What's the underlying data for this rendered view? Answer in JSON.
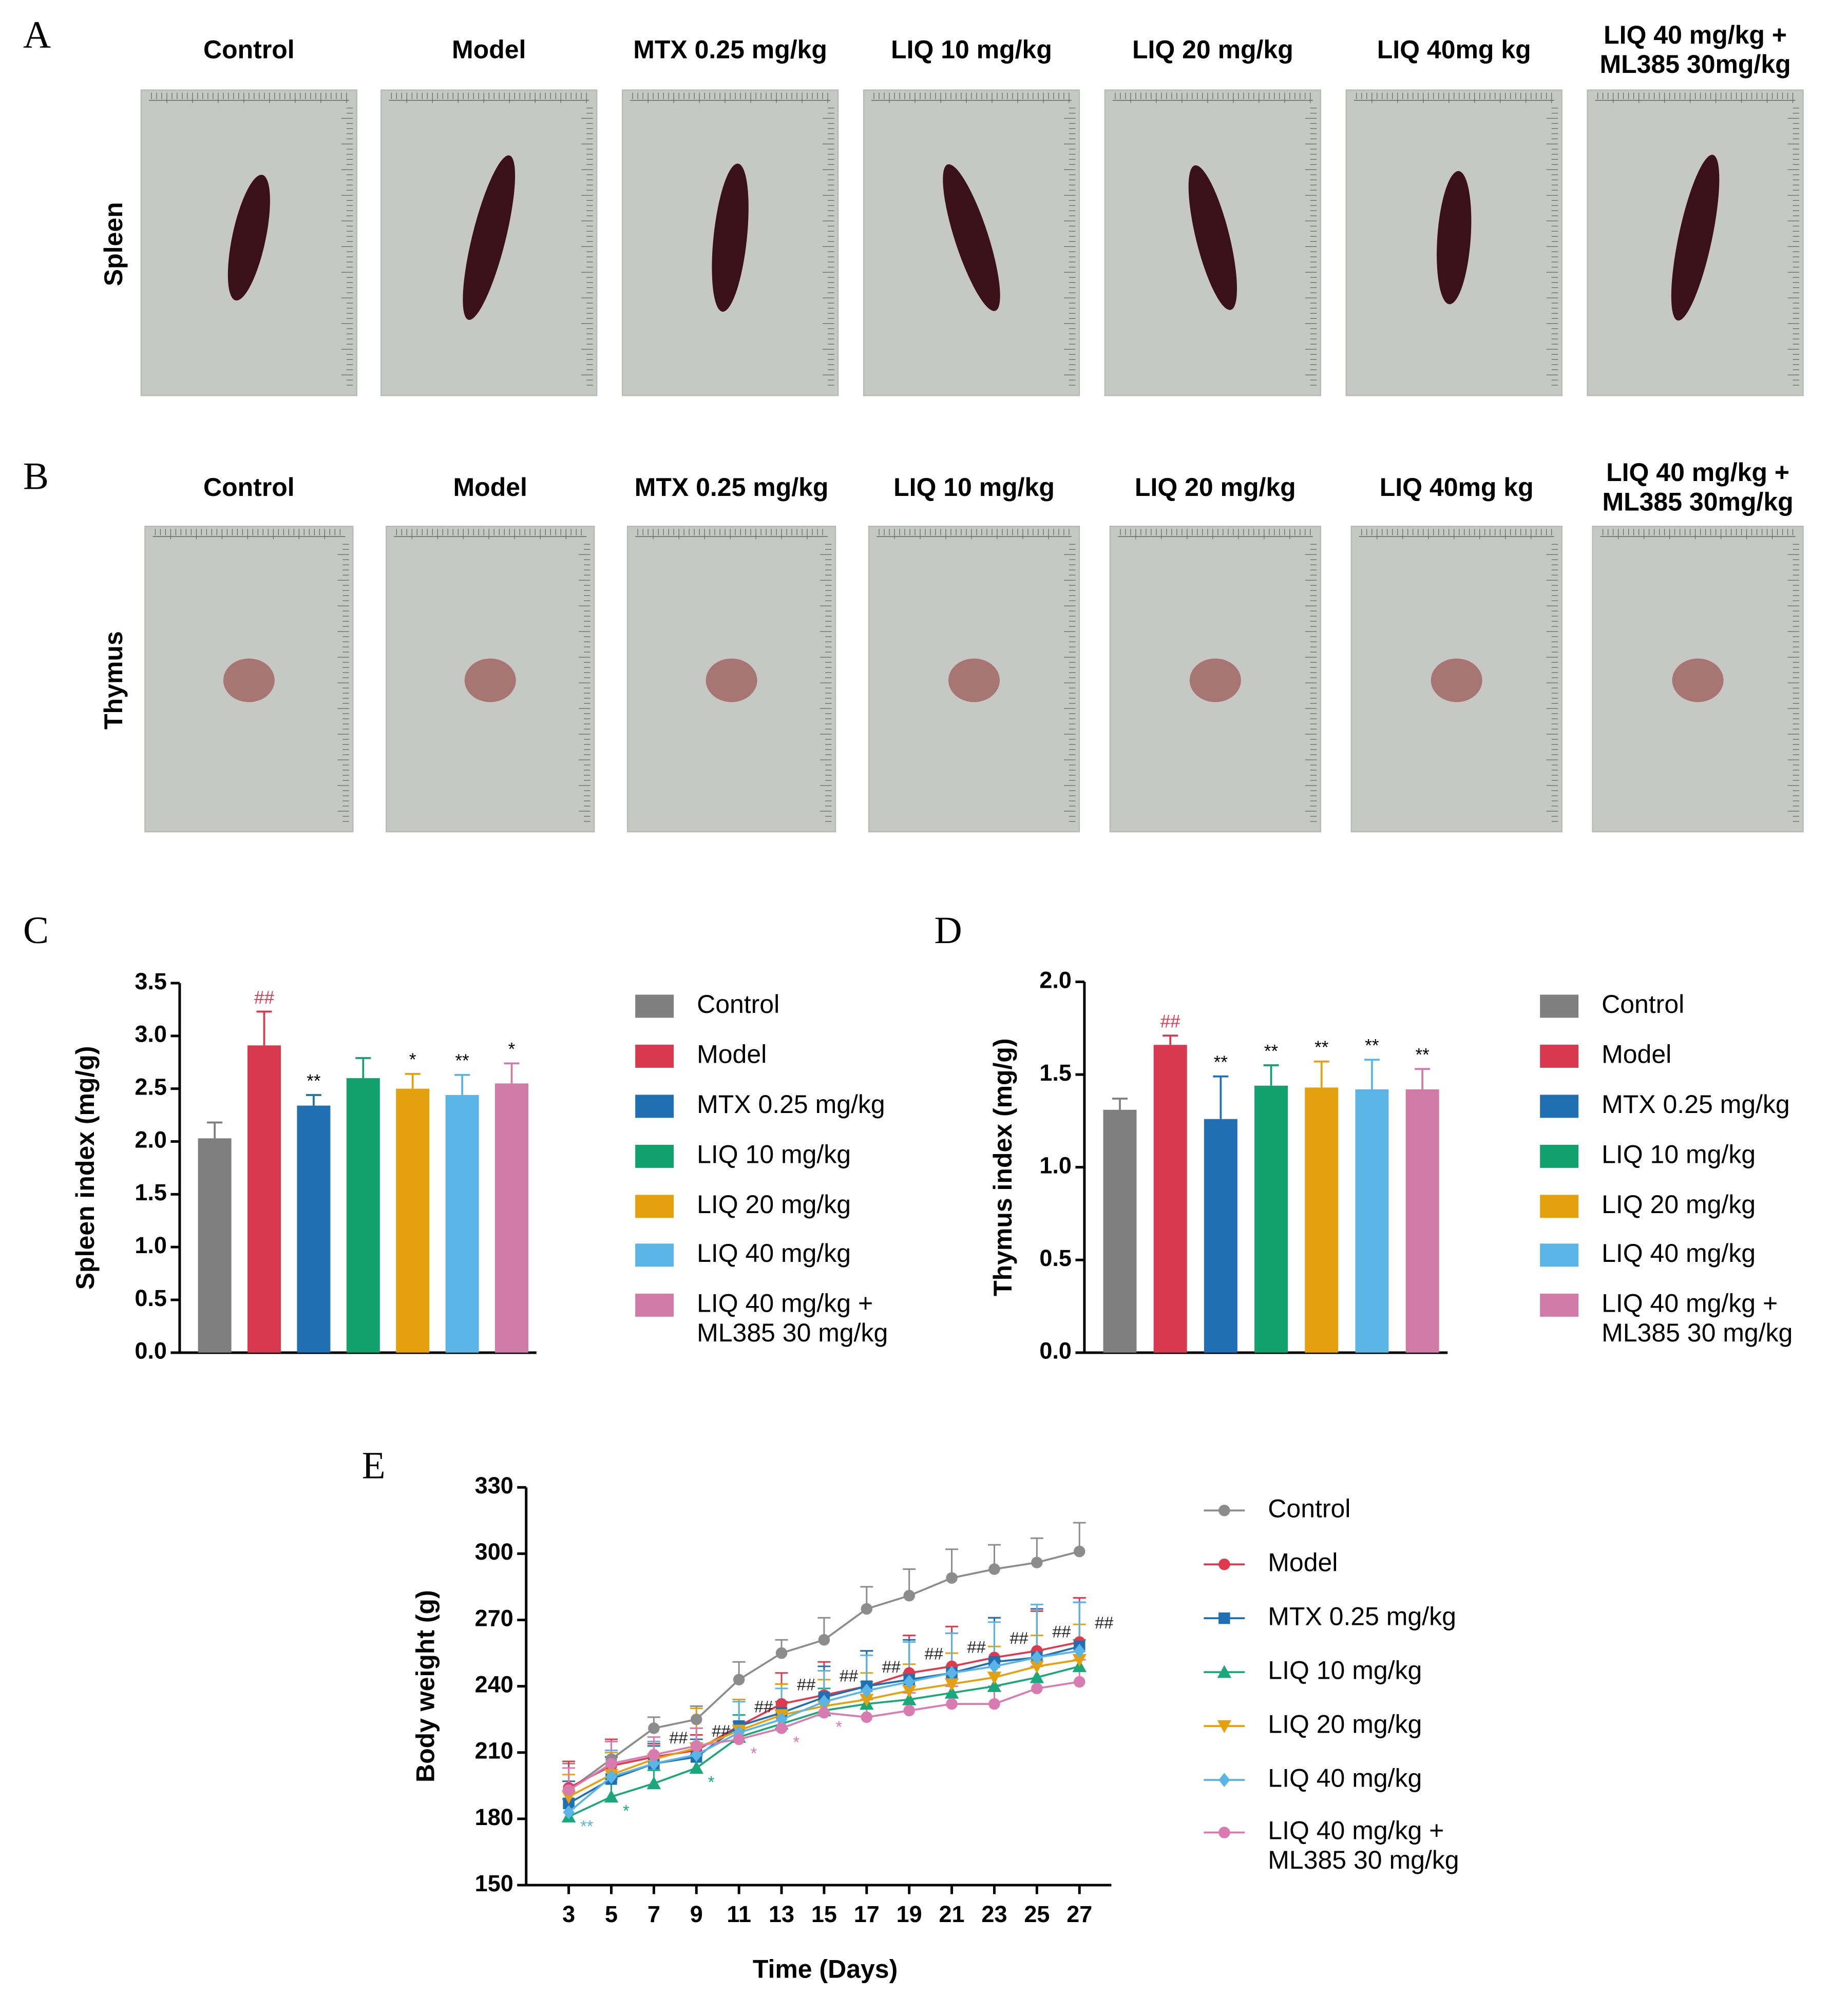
{
  "photo_panels": [
    {
      "label": "A",
      "organ": "Spleen",
      "groups": [
        "Control",
        "Model",
        "MTX 0.25 mg/kg",
        "LIQ 10 mg/kg",
        "LIQ 20 mg/kg",
        "LIQ 40mg kg",
        "LIQ 40 mg/kg +\nML385 30mg/kg"
      ]
    },
    {
      "label": "B",
      "organ": "Thymus",
      "groups": [
        "Control",
        "Model",
        "MTX 0.25 mg/kg",
        "LIQ 10 mg/kg",
        "LIQ 20 mg/kg",
        "LIQ 40mg kg",
        "LIQ 40 mg/kg +\nML385 30mg/kg"
      ]
    }
  ],
  "chart_data": [
    {
      "type": "bar",
      "panel_label": "C",
      "y_label": "Spleen index (mg/g)",
      "categories": [
        "Control",
        "Model",
        "MTX 0.25 mg/kg",
        "LIQ 10 mg/kg",
        "LIQ 20 mg/kg",
        "LIQ 40 mg/kg",
        "LIQ 40 mg/kg +\nML385 30 mg/kg"
      ],
      "values": [
        2.03,
        2.91,
        2.34,
        2.6,
        2.5,
        2.44,
        2.55
      ],
      "errors": [
        0.15,
        0.32,
        0.1,
        0.19,
        0.14,
        0.19,
        0.19
      ],
      "annotations": [
        null,
        "##",
        "**",
        null,
        "*",
        "**",
        "*"
      ],
      "colors": [
        "#7f7f7f",
        "#d9394e",
        "#1f6fb2",
        "#12a06e",
        "#e5a00d",
        "#5ab4e5",
        "#d07aa8"
      ],
      "ylim": [
        0,
        3.5
      ],
      "yticks": [
        {
          "value": 0,
          "label": "0.0"
        },
        0.5,
        {
          "value": 1,
          "label": "1.0"
        },
        1.5,
        {
          "value": 2,
          "label": "2.0"
        },
        2.5,
        {
          "value": 3,
          "label": "3.0"
        },
        3.5
      ]
    },
    {
      "type": "bar",
      "panel_label": "D",
      "y_label": "Thymus index (mg/g)",
      "categories": [
        "Control",
        "Model",
        "MTX 0.25 mg/kg",
        "LIQ 10 mg/kg",
        "LIQ 20 mg/kg",
        "LIQ 40 mg/kg",
        "LIQ 40 mg/kg +\nML385 30 mg/kg"
      ],
      "values": [
        1.31,
        1.66,
        1.26,
        1.44,
        1.43,
        1.42,
        1.42
      ],
      "errors": [
        0.06,
        0.05,
        0.23,
        0.11,
        0.14,
        0.16,
        0.11
      ],
      "annotations": [
        null,
        "##",
        "**",
        "**",
        "**",
        "**",
        "**"
      ],
      "colors": [
        "#7f7f7f",
        "#d9394e",
        "#1f6fb2",
        "#12a06e",
        "#e5a00d",
        "#5ab4e5",
        "#d07aa8"
      ],
      "ylim": [
        0,
        2
      ],
      "yticks": [
        {
          "value": 0,
          "label": "0.0"
        },
        0.5,
        {
          "value": 1,
          "label": "1.0"
        },
        1.5,
        {
          "value": 2,
          "label": "2.0"
        }
      ]
    },
    {
      "type": "line",
      "panel_label": "E",
      "x_label": "Time (Days)",
      "y_label": "Body weight (g)",
      "x": [
        3,
        5,
        7,
        9,
        11,
        13,
        15,
        17,
        19,
        21,
        23,
        25,
        27
      ],
      "xlim": [
        1,
        28.5
      ],
      "xticks": [
        3,
        5,
        7,
        9,
        11,
        13,
        15,
        17,
        19,
        21,
        23,
        25,
        27
      ],
      "ylim": [
        150,
        330
      ],
      "yticks": [
        150,
        180,
        210,
        240,
        270,
        300,
        330
      ],
      "series": [
        {
          "name": "Control",
          "color": "#8c8c8c",
          "marker": "circle",
          "values": [
            193,
            207,
            221,
            225,
            243,
            255,
            261,
            275,
            281,
            289,
            293,
            296,
            301
          ],
          "errors": [
            12,
            8,
            5,
            6,
            8,
            6,
            10,
            10,
            12,
            13,
            11,
            11,
            13
          ]
        },
        {
          "name": "Model",
          "color": "#e0394e",
          "marker": "circle",
          "values": [
            194,
            204,
            208,
            211,
            222,
            232,
            236,
            240,
            246,
            249,
            253,
            256,
            260
          ],
          "errors": [
            12,
            12,
            6,
            7,
            12,
            14,
            15,
            16,
            17,
            18,
            18,
            18,
            20
          ],
          "annotations": [
            null,
            null,
            "##",
            "##",
            "##",
            "##",
            "##",
            "##",
            "##",
            "##",
            "##",
            "##",
            "##"
          ]
        },
        {
          "name": "MTX 0.25 mg/kg",
          "color": "#1f6fb2",
          "marker": "square",
          "values": [
            187,
            198,
            205,
            208,
            222,
            228,
            235,
            240,
            243,
            246,
            251,
            253,
            258
          ],
          "errors": [
            10,
            10,
            8,
            8,
            12,
            13,
            14,
            16,
            18,
            18,
            20,
            22,
            20
          ]
        },
        {
          "name": "LIQ 10 mg/kg",
          "color": "#19a87a",
          "marker": "triangle",
          "values": [
            181,
            190,
            196,
            203,
            217,
            223,
            229,
            232,
            234,
            237,
            240,
            244,
            249
          ],
          "errors": [
            8,
            8,
            6,
            6,
            10,
            10,
            10,
            10,
            12,
            12,
            12,
            12,
            12
          ],
          "annotations": [
            null,
            "*",
            null,
            "*",
            null,
            null,
            null,
            null,
            null,
            null,
            null,
            null,
            null
          ]
        },
        {
          "name": "LIQ 20 mg/kg",
          "color": "#e5a00d",
          "marker": "triangle-down",
          "values": [
            190,
            200,
            207,
            212,
            220,
            227,
            231,
            234,
            238,
            241,
            244,
            249,
            252
          ],
          "errors": [
            10,
            10,
            8,
            18,
            14,
            14,
            12,
            12,
            12,
            14,
            14,
            14,
            16
          ]
        },
        {
          "name": "LIQ 40 mg/kg",
          "color": "#5ab4e5",
          "marker": "diamond",
          "values": [
            183,
            199,
            205,
            209,
            219,
            225,
            233,
            238,
            242,
            246,
            249,
            253,
            256
          ],
          "errors": [
            10,
            12,
            10,
            12,
            14,
            14,
            14,
            16,
            18,
            18,
            20,
            24,
            22
          ],
          "annotations": [
            "**",
            null,
            null,
            null,
            null,
            null,
            null,
            null,
            null,
            null,
            null,
            null,
            null
          ]
        },
        {
          "name": "LIQ 40 mg/kg +\nML385 30 mg/kg",
          "color": "#d77bb0",
          "marker": "circle",
          "values": [
            193,
            205,
            209,
            213,
            216,
            221,
            228,
            226,
            229,
            232,
            232,
            239,
            242
          ],
          "errors": [
            10,
            10,
            8,
            8,
            8,
            8,
            8,
            8,
            8,
            8,
            8,
            10,
            10
          ],
          "annotations": [
            null,
            null,
            null,
            null,
            "*",
            "*",
            "*",
            null,
            null,
            null,
            null,
            null,
            null
          ]
        }
      ]
    }
  ]
}
